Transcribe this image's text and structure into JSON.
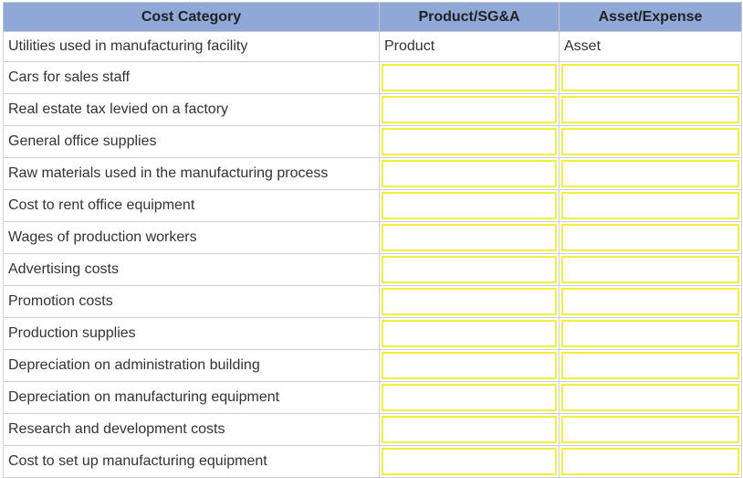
{
  "table": {
    "headers": [
      "Cost Category",
      "Product/SG&A",
      "Asset/Expense"
    ],
    "first_row": {
      "category": "Utilities used in manufacturing facility",
      "product_sga": "Product",
      "asset_expense": "Asset"
    },
    "input_rows": [
      "Cars for sales staff",
      "Real estate tax levied on a factory",
      "General office supplies",
      "Raw materials used in the manufacturing process",
      "Cost to rent office equipment",
      "Wages of production workers",
      "Advertising costs",
      "Promotion costs",
      "Production supplies",
      "Depreciation on administration building",
      "Depreciation on manufacturing equipment",
      "Research and development costs",
      "Cost to set up manufacturing equipment"
    ]
  },
  "colors": {
    "header_bg": "#8fa8d8",
    "input_border": "#f3ef3e",
    "grid_line": "#cfcfcf"
  }
}
